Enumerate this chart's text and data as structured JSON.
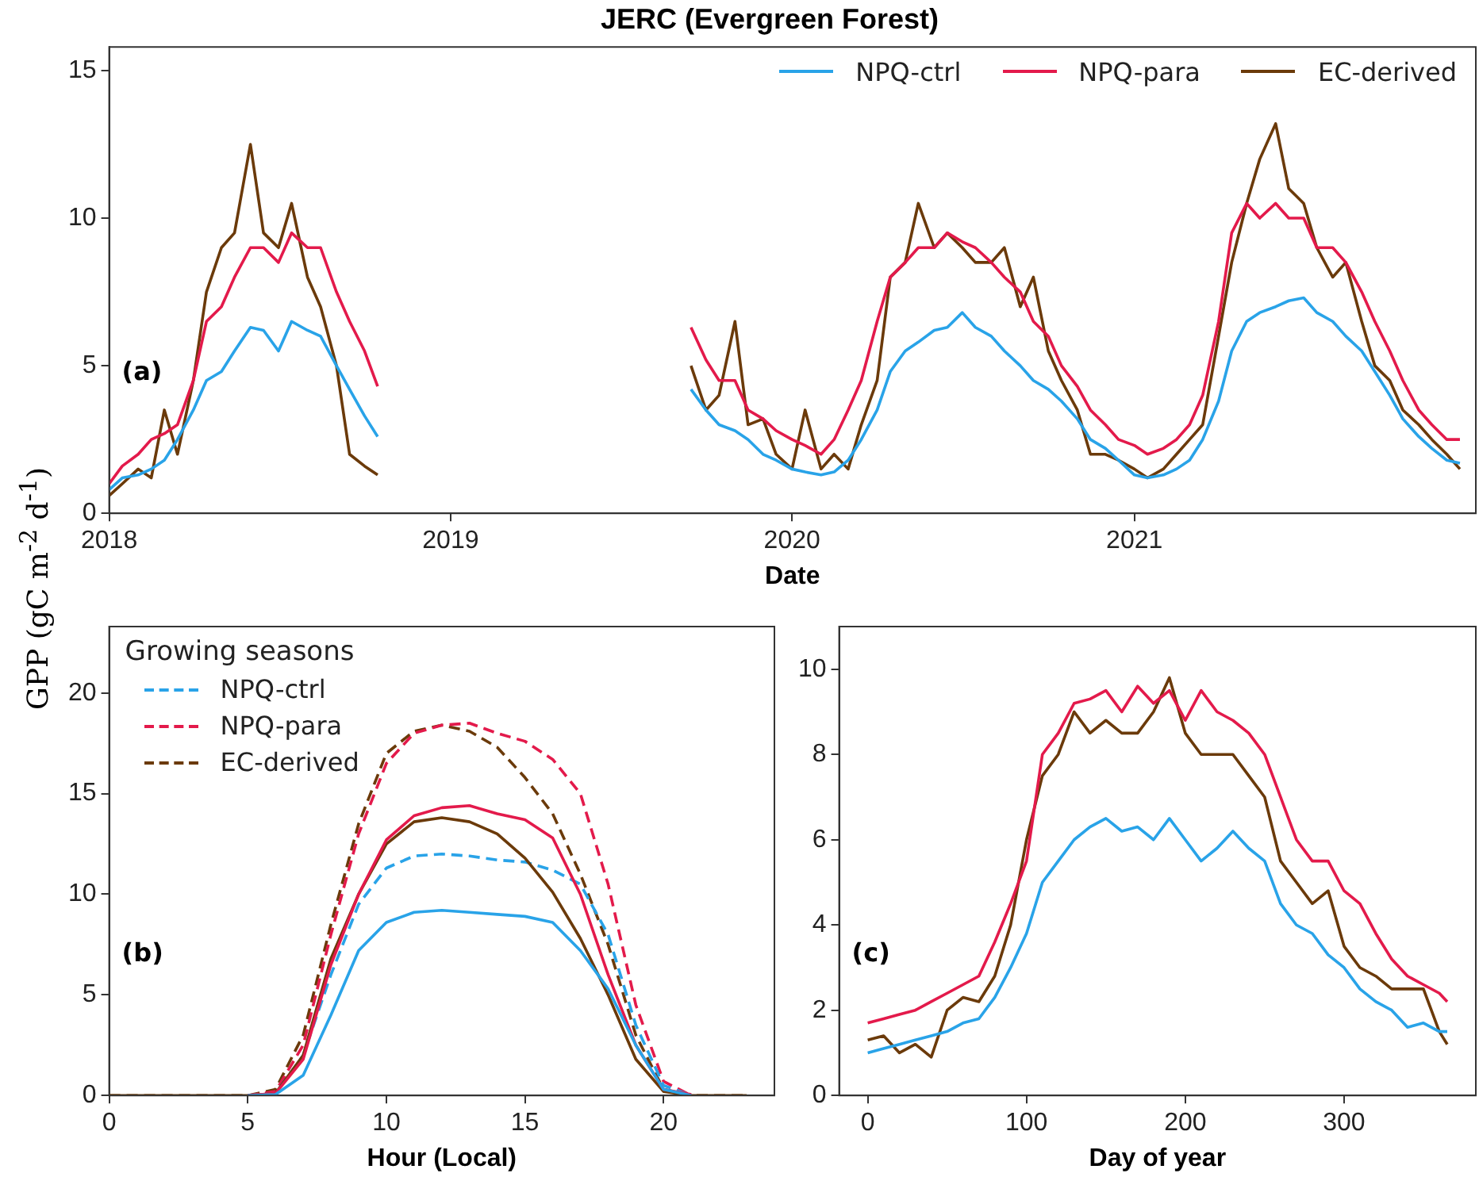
{
  "chart_data": [
    {
      "type": "line",
      "title": "JERC (Evergreen Forest)",
      "ylabel": "GPP (gC m$^{-2}$ d$^{-1}$)",
      "xlabel": "Date",
      "annotations": [
        "(a)"
      ],
      "legend": "top right",
      "xlim": [
        "2018-01-01",
        "2022-01-01"
      ],
      "xticks": [
        "2018",
        "2019",
        "2020",
        "2021"
      ],
      "ylim": [
        0,
        15.8
      ],
      "yticks": [
        0,
        5,
        10,
        15
      ],
      "x": [
        "2018-01-01",
        "2018-01-15",
        "2018-02-01",
        "2018-02-15",
        "2018-03-01",
        "2018-03-15",
        "2018-04-01",
        "2018-04-15",
        "2018-05-01",
        "2018-05-15",
        "2018-06-01",
        "2018-06-15",
        "2018-07-01",
        "2018-07-15",
        "2018-08-01",
        "2018-08-15",
        "2018-09-01",
        "2018-09-15",
        "2018-10-01",
        "2018-10-15",
        "2019-03-01",
        "2019-09-15",
        "2019-10-01",
        "2019-10-15",
        "2019-11-01",
        "2019-11-15",
        "2019-12-01",
        "2019-12-15",
        "2020-01-01",
        "2020-01-15",
        "2020-02-01",
        "2020-02-15",
        "2020-03-01",
        "2020-03-15",
        "2020-04-01",
        "2020-04-15",
        "2020-05-01",
        "2020-05-15",
        "2020-06-01",
        "2020-06-15",
        "2020-07-01",
        "2020-07-15",
        "2020-08-01",
        "2020-08-15",
        "2020-09-01",
        "2020-09-15",
        "2020-10-01",
        "2020-10-15",
        "2020-11-01",
        "2020-11-15",
        "2020-12-01",
        "2020-12-15",
        "2021-01-01",
        "2021-01-15",
        "2021-02-01",
        "2021-02-15",
        "2021-03-01",
        "2021-03-15",
        "2021-04-01",
        "2021-04-15",
        "2021-05-01",
        "2021-05-15",
        "2021-06-01",
        "2021-06-15",
        "2021-07-01",
        "2021-07-15",
        "2021-08-01",
        "2021-08-15",
        "2021-09-01",
        "2021-09-15",
        "2021-10-01",
        "2021-10-15",
        "2021-11-01",
        "2021-11-15",
        "2021-12-01",
        "2021-12-15"
      ],
      "series": [
        {
          "name": "NPQ-ctrl",
          "color": "#29a3e8",
          "values": [
            0.8,
            1.2,
            1.3,
            1.5,
            1.8,
            2.5,
            3.5,
            4.5,
            4.8,
            5.5,
            6.3,
            6.2,
            5.5,
            6.5,
            6.2,
            6.0,
            5.0,
            4.2,
            3.3,
            2.6,
            null,
            4.2,
            3.5,
            3.0,
            2.8,
            2.5,
            2.0,
            1.8,
            1.5,
            1.4,
            1.3,
            1.4,
            1.8,
            2.5,
            3.5,
            4.8,
            5.5,
            5.8,
            6.2,
            6.3,
            6.8,
            6.3,
            6.0,
            5.5,
            5.0,
            4.5,
            4.2,
            3.8,
            3.2,
            2.5,
            2.2,
            1.8,
            1.3,
            1.2,
            1.3,
            1.5,
            1.8,
            2.5,
            3.8,
            5.5,
            6.5,
            6.8,
            7.0,
            7.2,
            7.3,
            6.8,
            6.5,
            6.0,
            5.5,
            4.8,
            4.0,
            3.2,
            2.6,
            2.2,
            1.8,
            1.7
          ]
        },
        {
          "name": "NPQ-para",
          "color": "#e31a4b",
          "values": [
            1.0,
            1.6,
            2.0,
            2.5,
            2.7,
            3.0,
            4.5,
            6.5,
            7.0,
            8.0,
            9.0,
            9.0,
            8.5,
            9.5,
            9.0,
            9.0,
            7.5,
            6.5,
            5.5,
            4.3,
            null,
            6.3,
            5.2,
            4.5,
            4.5,
            3.5,
            3.2,
            2.8,
            2.5,
            2.3,
            2.0,
            2.5,
            3.5,
            4.5,
            6.5,
            8.0,
            8.5,
            9.0,
            9.0,
            9.5,
            9.2,
            9.0,
            8.5,
            8.0,
            7.5,
            6.5,
            6.0,
            5.0,
            4.3,
            3.5,
            3.0,
            2.5,
            2.3,
            2.0,
            2.2,
            2.5,
            3.0,
            4.0,
            6.5,
            9.5,
            10.5,
            10.0,
            10.5,
            10.0,
            10.0,
            9.0,
            9.0,
            8.5,
            7.5,
            6.5,
            5.5,
            4.5,
            3.5,
            3.0,
            2.5,
            2.5
          ]
        },
        {
          "name": "EC-derived",
          "color": "#6b3a0a",
          "values": [
            0.6,
            1.0,
            1.5,
            1.2,
            3.5,
            2.0,
            4.5,
            7.5,
            9.0,
            9.5,
            12.5,
            9.5,
            9.0,
            10.5,
            8.0,
            7.0,
            5.0,
            2.0,
            1.6,
            1.3,
            null,
            5.0,
            3.5,
            4.0,
            6.5,
            3.0,
            3.2,
            2.0,
            1.5,
            3.5,
            1.5,
            2.0,
            1.5,
            3.0,
            4.5,
            8.0,
            8.5,
            10.5,
            9.0,
            9.5,
            9.0,
            8.5,
            8.5,
            9.0,
            7.0,
            8.0,
            5.5,
            4.5,
            3.5,
            2.0,
            2.0,
            1.8,
            1.5,
            1.2,
            1.5,
            2.0,
            2.5,
            3.0,
            6.0,
            8.5,
            10.5,
            12.0,
            13.2,
            11.0,
            10.5,
            9.0,
            8.0,
            8.5,
            6.5,
            5.0,
            4.5,
            3.5,
            3.0,
            2.5,
            2.0,
            1.5
          ]
        }
      ]
    },
    {
      "type": "line",
      "xlabel": "Hour (Local)",
      "annotations": [
        "(b)"
      ],
      "legend": "top left",
      "legend_title": "Growing seasons",
      "xlim": [
        0,
        24
      ],
      "xticks": [
        0,
        5,
        10,
        15,
        20
      ],
      "ylim": [
        0,
        23.3
      ],
      "yticks": [
        0,
        5,
        10,
        15,
        20
      ],
      "x": [
        0,
        1,
        2,
        3,
        4,
        5,
        6,
        7,
        8,
        9,
        10,
        11,
        12,
        13,
        14,
        15,
        16,
        17,
        18,
        19,
        20,
        21,
        22,
        23
      ],
      "series": [
        {
          "color": "#29a3e8",
          "values": [
            null,
            null,
            null,
            null,
            null,
            0,
            0.05,
            1.0,
            4.0,
            7.2,
            8.6,
            9.1,
            9.2,
            9.1,
            9.0,
            8.9,
            8.6,
            7.2,
            5.3,
            2.5,
            0.3,
            0,
            null,
            null
          ]
        },
        {
          "color": "#e31a4b",
          "values": [
            null,
            null,
            null,
            null,
            null,
            0,
            0.1,
            1.8,
            6.5,
            10.0,
            12.7,
            13.9,
            14.3,
            14.4,
            14.0,
            13.7,
            12.8,
            10.0,
            6.0,
            2.5,
            0.3,
            0.05,
            null,
            null
          ]
        },
        {
          "color": "#6b3a0a",
          "values": [
            0,
            0,
            0,
            0,
            0,
            0,
            0.1,
            2.0,
            6.8,
            10.0,
            12.5,
            13.6,
            13.8,
            13.6,
            13.0,
            11.8,
            10.1,
            7.8,
            5.0,
            1.8,
            0.2,
            0,
            0,
            0
          ]
        },
        {
          "name": "NPQ-ctrl",
          "color": "#29a3e8",
          "line_style": "dashed",
          "values": [
            null,
            null,
            null,
            null,
            null,
            0,
            0.1,
            2.0,
            6.0,
            9.5,
            11.3,
            11.9,
            12.0,
            11.9,
            11.7,
            11.6,
            11.2,
            10.5,
            8.0,
            3.5,
            0.5,
            0,
            null,
            null
          ]
        },
        {
          "name": "NPQ-para",
          "color": "#e31a4b",
          "line_style": "dashed",
          "values": [
            null,
            null,
            null,
            null,
            null,
            0,
            0.2,
            2.5,
            8.0,
            13.0,
            16.5,
            18.0,
            18.4,
            18.5,
            18.0,
            17.6,
            16.7,
            15.0,
            10.5,
            4.5,
            0.7,
            0,
            null,
            null
          ]
        },
        {
          "name": "EC-derived",
          "color": "#6b3a0a",
          "line_style": "dashed",
          "values": [
            0,
            0,
            0,
            0,
            0,
            0,
            0.3,
            3.0,
            8.5,
            13.5,
            17.0,
            18.1,
            18.4,
            18.1,
            17.3,
            15.8,
            14.0,
            11.0,
            7.5,
            3.0,
            0.3,
            0,
            0,
            0
          ]
        }
      ]
    },
    {
      "type": "line",
      "xlabel": "Day of year",
      "annotations": [
        "(c)"
      ],
      "xlim": [
        -18,
        383
      ],
      "xticks": [
        0,
        100,
        200,
        300
      ],
      "ylim": [
        0,
        11
      ],
      "yticks": [
        0,
        2,
        4,
        6,
        8,
        10
      ],
      "x": [
        0,
        10,
        20,
        30,
        40,
        50,
        60,
        70,
        80,
        90,
        100,
        110,
        120,
        130,
        140,
        150,
        160,
        170,
        180,
        190,
        200,
        210,
        220,
        230,
        240,
        250,
        260,
        270,
        280,
        290,
        300,
        310,
        320,
        330,
        340,
        350,
        360,
        365
      ],
      "series": [
        {
          "color": "#29a3e8",
          "values": [
            1.0,
            1.1,
            1.2,
            1.3,
            1.4,
            1.5,
            1.7,
            1.8,
            2.3,
            3.0,
            3.8,
            5.0,
            5.5,
            6.0,
            6.3,
            6.5,
            6.2,
            6.3,
            6.0,
            6.5,
            6.0,
            5.5,
            5.8,
            6.2,
            5.8,
            5.5,
            4.5,
            4.0,
            3.8,
            3.3,
            3.0,
            2.5,
            2.2,
            2.0,
            1.6,
            1.7,
            1.5,
            1.5
          ]
        },
        {
          "color": "#e31a4b",
          "values": [
            1.7,
            1.8,
            1.9,
            2.0,
            2.2,
            2.4,
            2.6,
            2.8,
            3.6,
            4.5,
            5.5,
            8.0,
            8.5,
            9.2,
            9.3,
            9.5,
            9.0,
            9.6,
            9.2,
            9.5,
            8.8,
            9.5,
            9.0,
            8.8,
            8.5,
            8.0,
            7.0,
            6.0,
            5.5,
            5.5,
            4.8,
            4.5,
            3.8,
            3.2,
            2.8,
            2.6,
            2.4,
            2.2
          ]
        },
        {
          "color": "#6b3a0a",
          "values": [
            1.3,
            1.4,
            1.0,
            1.2,
            0.9,
            2.0,
            2.3,
            2.2,
            2.8,
            4.0,
            6.0,
            7.5,
            8.0,
            9.0,
            8.5,
            8.8,
            8.5,
            8.5,
            9.0,
            9.8,
            8.5,
            8.0,
            8.0,
            8.0,
            7.5,
            7.0,
            5.5,
            5.0,
            4.5,
            4.8,
            3.5,
            3.0,
            2.8,
            2.5,
            2.5,
            2.5,
            1.5,
            1.2
          ]
        }
      ]
    }
  ]
}
